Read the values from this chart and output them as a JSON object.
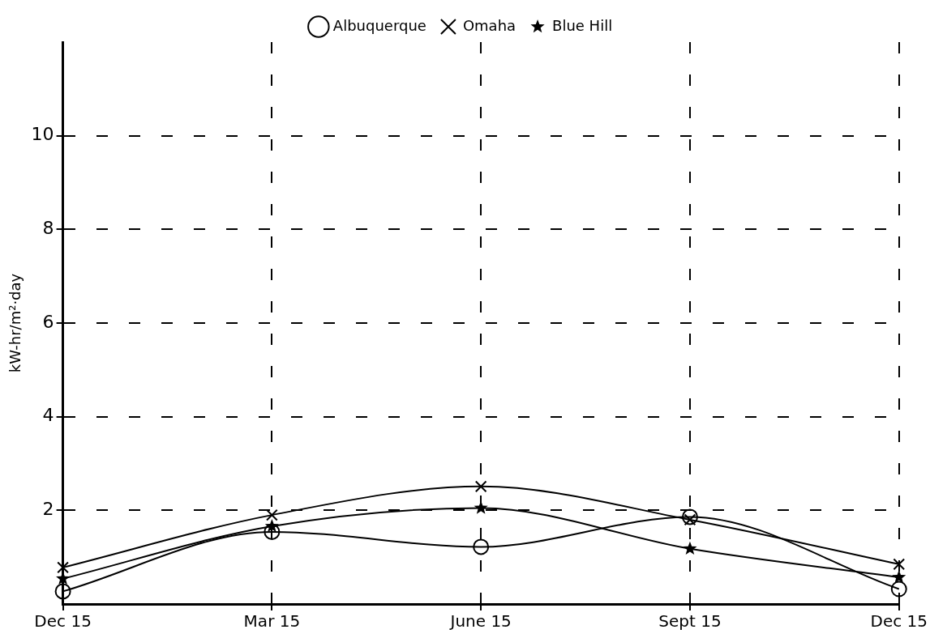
{
  "chart_data": {
    "type": "line",
    "ylabel": "kW-hr/m²·day",
    "categories": [
      "Dec 15",
      "Mar 15",
      "June 15",
      "Sept 15",
      "Dec 15"
    ],
    "ylim": [
      0,
      12
    ],
    "yticks": [
      2,
      4,
      6,
      8,
      10
    ],
    "grid": true,
    "legend": "top",
    "series": [
      {
        "name": "Albuquerque",
        "color": "#000000",
        "marker": "circle",
        "values": [
          0.27,
          1.54,
          1.22,
          1.86,
          0.32
        ]
      },
      {
        "name": "Omaha",
        "color": "#000000",
        "marker": "cross",
        "values": [
          0.78,
          1.9,
          2.51,
          1.8,
          0.85
        ]
      },
      {
        "name": "Blue Hill",
        "color": "#000000",
        "marker": "star",
        "values": [
          0.54,
          1.66,
          2.05,
          1.18,
          0.57
        ]
      }
    ]
  }
}
